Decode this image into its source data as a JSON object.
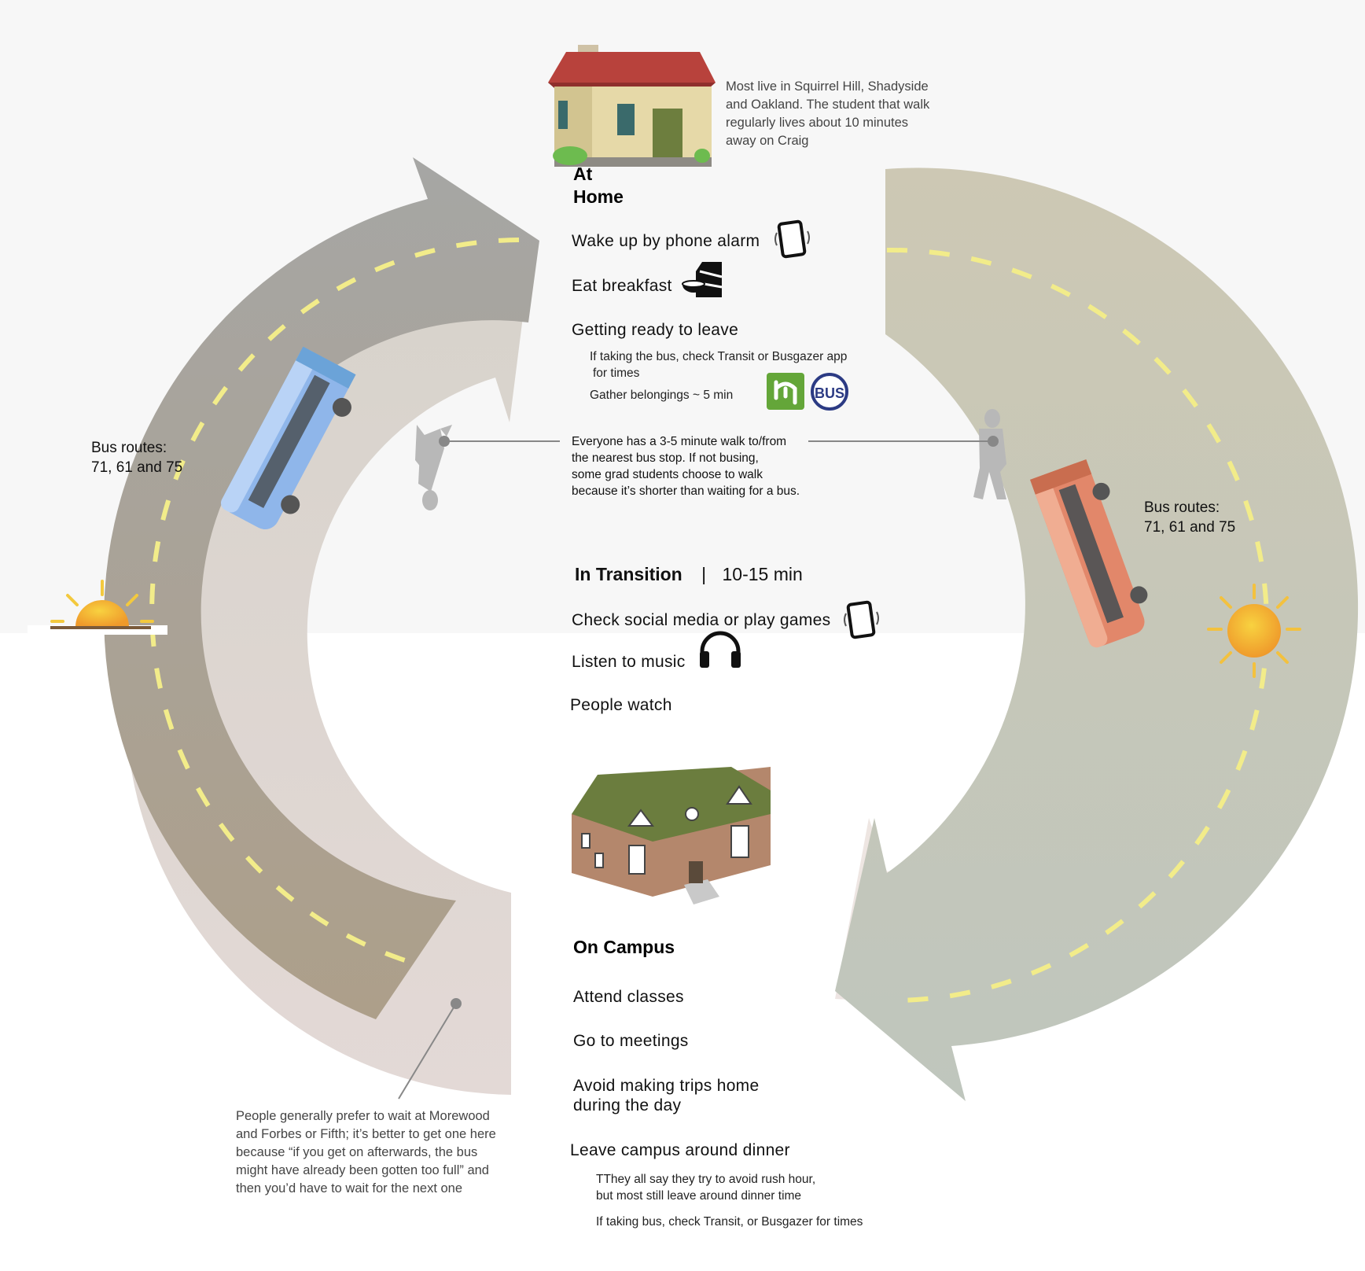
{
  "home": {
    "note": [
      "Most live in Squirrel Hill, Shadyside",
      "and Oakland. The student that walk",
      "regularly lives about 10 minutes",
      "away on Craig"
    ],
    "heading": [
      "At",
      "Home"
    ],
    "activities": {
      "wake": "Wake up by phone alarm",
      "breakfast": "Eat breakfast",
      "getting_ready": "Getting ready to leave"
    },
    "sub": {
      "bus_check": [
        "If taking the bus, check Transit or Busgazer app",
        "for times"
      ],
      "gather": "Gather belongings ~ 5 min"
    }
  },
  "walk_note": [
    "Everyone has a 3-5 minute walk to/from",
    "the nearest bus stop. If not busing,",
    "some grad students choose to walk",
    "because it’s shorter than waiting for a bus."
  ],
  "transition": {
    "heading": "In Transition",
    "separator": "|",
    "duration": "10-15 min",
    "activities": {
      "social": "Check social media or play games",
      "music": "Listen to music",
      "people": "People watch"
    }
  },
  "campus": {
    "heading": "On Campus",
    "activities": {
      "classes": "Attend classes",
      "meetings": "Go to meetings",
      "avoid": [
        "Avoid making trips home",
        "during the day"
      ],
      "leave": "Leave campus around dinner"
    },
    "sub": {
      "rush": [
        "TThey all say they try to avoid rush hour,",
        "but most still leave around dinner time"
      ],
      "bus_check": "If taking bus, check Transit, or Busgazer for times"
    }
  },
  "bus_routes_left": [
    "Bus routes:",
    "71, 61 and 75"
  ],
  "bus_routes_right": [
    "Bus routes:",
    "71, 61 and 75"
  ],
  "wait_note": [
    "People generally prefer to wait at Morewood",
    "and Forbes or Fifth; it’s better to get one here",
    "because “if you get on afterwards, the bus",
    "might have already been gotten too full” and",
    "then you’d have to wait for the next one"
  ],
  "icons": {
    "transit_app": "transit-app-icon",
    "busgazer_app": "busgazer-app-icon",
    "busgazer_label": "BUS"
  },
  "colors": {
    "left_road": "#a7a198",
    "right_road": "#c9c8b4",
    "road_dash": "#f2ec8a",
    "blue_bus": "#8fb6ea",
    "orange_bus": "#e2876a",
    "sun": "#f4b02e"
  }
}
